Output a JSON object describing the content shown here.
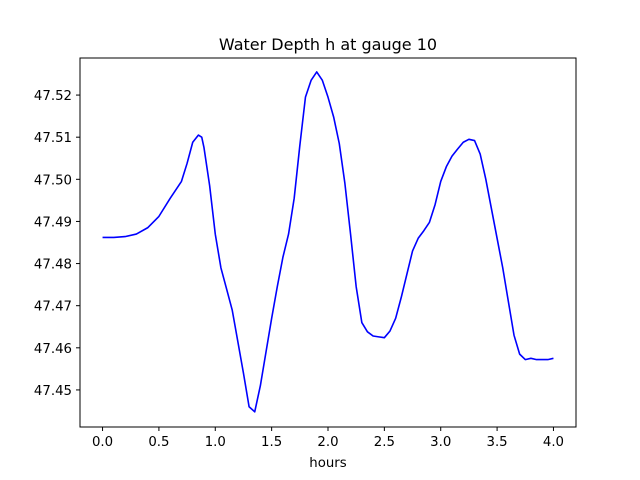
{
  "chart_data": {
    "type": "line",
    "title": "Water Depth h at gauge 10",
    "xlabel": "hours",
    "ylabel": "",
    "xlim": [
      -0.2,
      4.2
    ],
    "ylim": [
      47.4412,
      47.5288
    ],
    "xticks": [
      0.0,
      0.5,
      1.0,
      1.5,
      2.0,
      2.5,
      3.0,
      3.5,
      4.0
    ],
    "xtick_labels": [
      "0.0",
      "0.5",
      "1.0",
      "1.5",
      "2.0",
      "2.5",
      "3.0",
      "3.5",
      "4.0"
    ],
    "yticks": [
      47.45,
      47.46,
      47.47,
      47.48,
      47.49,
      47.5,
      47.51,
      47.52
    ],
    "ytick_labels": [
      "47.45",
      "47.46",
      "47.47",
      "47.48",
      "47.49",
      "47.50",
      "47.51",
      "47.52"
    ],
    "grid": false,
    "legend": "none",
    "series": [
      {
        "color": "#0000ff",
        "x": [
          0.0,
          0.1,
          0.2,
          0.3,
          0.4,
          0.5,
          0.6,
          0.7,
          0.75,
          0.8,
          0.85,
          0.88,
          0.9,
          0.95,
          1.0,
          1.05,
          1.1,
          1.15,
          1.2,
          1.25,
          1.3,
          1.35,
          1.4,
          1.45,
          1.5,
          1.55,
          1.6,
          1.65,
          1.7,
          1.75,
          1.8,
          1.85,
          1.9,
          1.95,
          2.0,
          2.05,
          2.1,
          2.15,
          2.2,
          2.25,
          2.3,
          2.35,
          2.4,
          2.45,
          2.5,
          2.55,
          2.6,
          2.65,
          2.7,
          2.75,
          2.8,
          2.85,
          2.9,
          2.95,
          3.0,
          3.05,
          3.1,
          3.15,
          3.2,
          3.25,
          3.3,
          3.35,
          3.4,
          3.45,
          3.5,
          3.55,
          3.6,
          3.65,
          3.7,
          3.75,
          3.8,
          3.85,
          3.9,
          3.95,
          4.0
        ],
        "y": [
          47.4862,
          47.4862,
          47.4864,
          47.487,
          47.4885,
          47.4912,
          47.4955,
          47.4995,
          47.5038,
          47.5088,
          47.5105,
          47.51,
          47.5075,
          47.4985,
          47.487,
          47.479,
          47.474,
          47.469,
          47.4615,
          47.454,
          47.446,
          47.4448,
          47.451,
          47.459,
          47.467,
          47.4745,
          47.4815,
          47.487,
          47.4955,
          47.508,
          47.5195,
          47.5235,
          47.5255,
          47.5235,
          47.5195,
          47.5148,
          47.5085,
          47.499,
          47.487,
          47.4745,
          47.466,
          47.4638,
          47.4628,
          47.4626,
          47.4624,
          47.464,
          47.467,
          47.472,
          47.4775,
          47.483,
          47.486,
          47.4878,
          47.4898,
          47.494,
          47.4995,
          47.503,
          47.5055,
          47.5072,
          47.5088,
          47.5095,
          47.5092,
          47.506,
          47.5,
          47.493,
          47.486,
          47.479,
          47.471,
          47.463,
          47.4585,
          47.4572,
          47.4575,
          47.4572,
          47.4572,
          47.4572,
          47.4575
        ]
      }
    ]
  }
}
